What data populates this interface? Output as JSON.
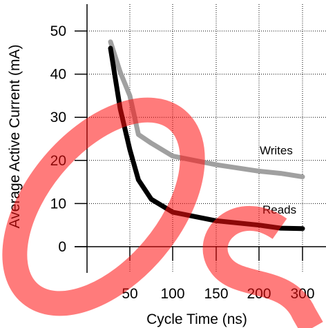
{
  "chart_data": {
    "type": "line",
    "title": "",
    "xlabel": "Cycle Time (ns)",
    "ylabel": "Average Active Current (mA)",
    "x_ticks": [
      "50",
      "100",
      "150",
      "200",
      "300"
    ],
    "y_ticks": [
      0,
      10,
      20,
      30,
      40,
      50
    ],
    "ylim": [
      0,
      55
    ],
    "grid": true,
    "series": [
      {
        "name": "Writes",
        "color": "#a0a0a0",
        "x": [
          40,
          45,
          50,
          60,
          75,
          100,
          150,
          200,
          250,
          300
        ],
        "y": [
          47.5,
          40.5,
          35,
          26,
          24,
          21,
          19,
          17.5,
          17,
          16.2
        ]
      },
      {
        "name": "Reads",
        "color": "#000000",
        "x": [
          40,
          45,
          50,
          60,
          75,
          100,
          150,
          200,
          250,
          300
        ],
        "y": [
          46,
          32,
          22.5,
          15.5,
          11,
          8,
          6,
          5,
          4.3,
          4.2
        ]
      }
    ]
  },
  "watermark": {
    "text": "DS",
    "color": "#ff0000"
  }
}
